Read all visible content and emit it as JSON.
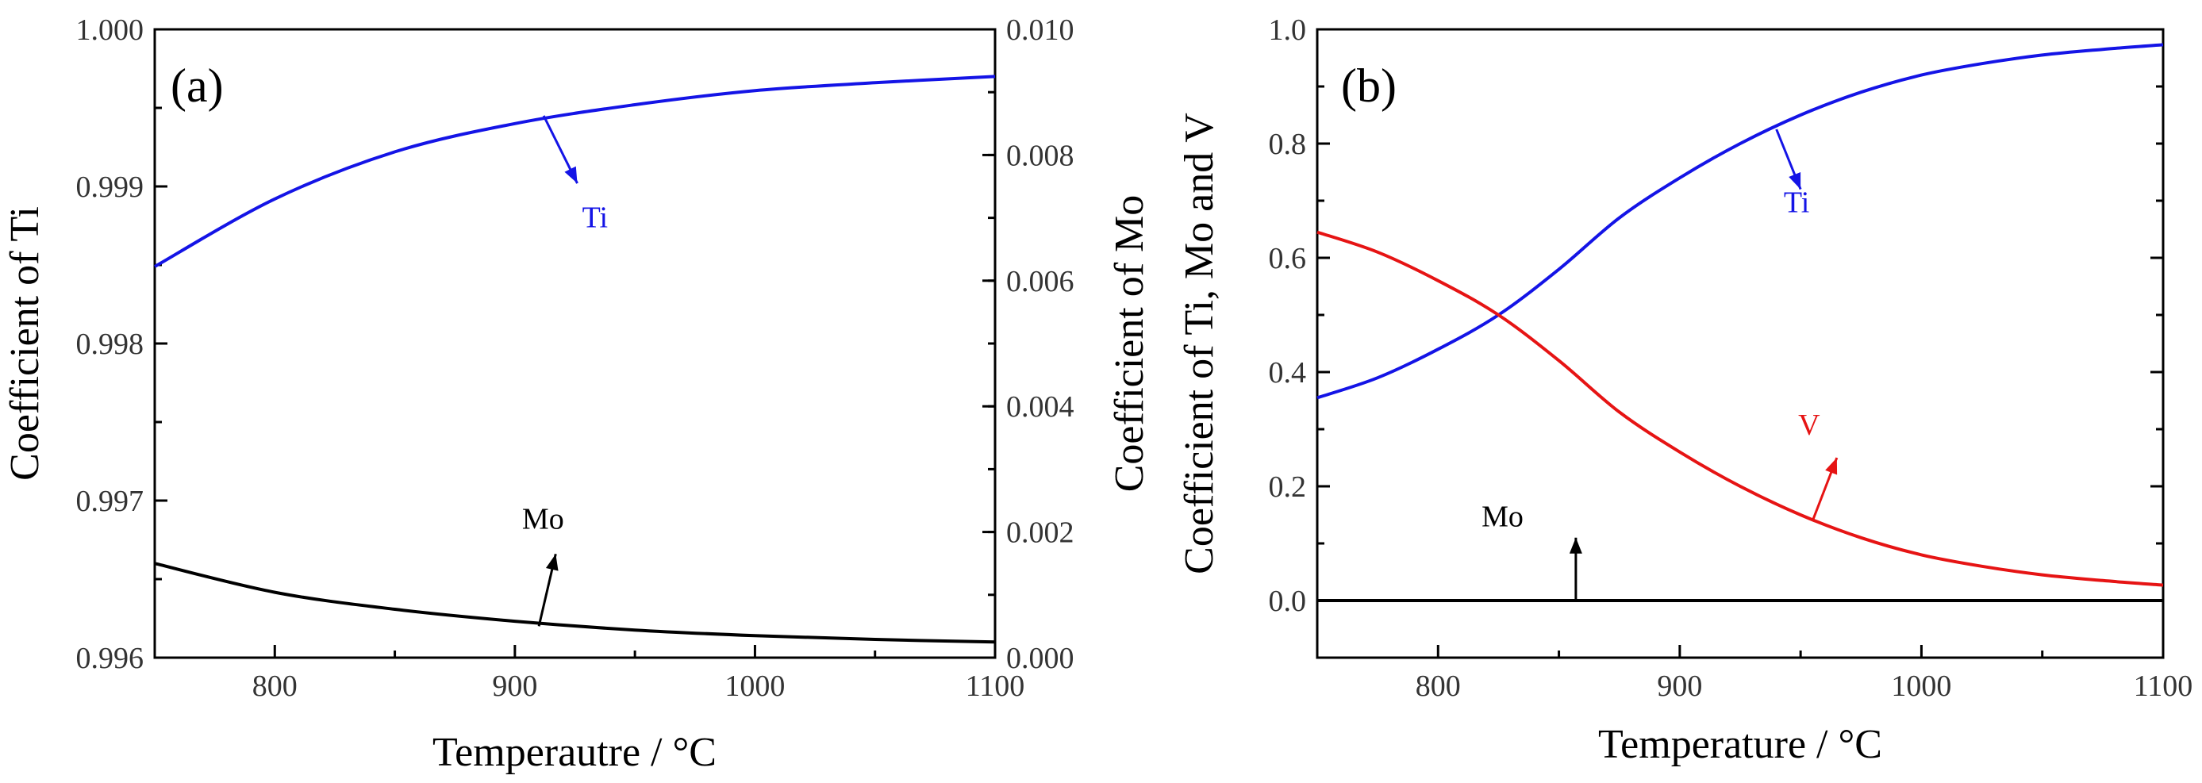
{
  "chart_data": [
    {
      "type": "line",
      "panel_label": "(a)",
      "xlabel": "Temperautre / °C",
      "ylabel_left": "Coefficient of Ti",
      "ylabel_right": "Coefficient of Mo",
      "xlim": [
        750,
        1100
      ],
      "ylim_left": [
        0.996,
        1.0
      ],
      "ylim_right": [
        0.0,
        0.01
      ],
      "x_ticks": [
        "800",
        "900",
        "1000",
        "1100"
      ],
      "y_left_ticks": [
        "0.996",
        "0.997",
        "0.998",
        "0.999",
        "1.000"
      ],
      "y_right_ticks": [
        "0.000",
        "0.002",
        "0.004",
        "0.006",
        "0.008",
        "0.010"
      ],
      "series": [
        {
          "name": "Ti",
          "axis": "left",
          "color": "#1414e6",
          "x": [
            750,
            800,
            850,
            900,
            950,
            1000,
            1050,
            1100
          ],
          "y": [
            0.99849,
            0.99892,
            0.99922,
            0.9994,
            0.99952,
            0.99961,
            0.99966,
            0.9997
          ]
        },
        {
          "name": "Mo",
          "axis": "right",
          "color": "#000000",
          "x": [
            750,
            800,
            850,
            900,
            950,
            1000,
            1050,
            1100
          ],
          "y": [
            0.0015,
            0.00104,
            0.00077,
            0.00058,
            0.00044,
            0.00035,
            0.00029,
            0.00025
          ]
        }
      ],
      "annotations": [
        {
          "text": "Ti",
          "color": "#1414e6",
          "arrow_from": [
            912,
            0.99945
          ],
          "arrow_to": [
            926,
            0.99902
          ],
          "text_at": [
            928,
            0.99874
          ]
        },
        {
          "text": "Mo",
          "color": "#000000",
          "arrow_from": [
            910,
            0.0005
          ],
          "arrow_to": [
            917,
            0.00165
          ],
          "text_at": [
            903,
            0.00205
          ]
        }
      ]
    },
    {
      "type": "line",
      "panel_label": "(b)",
      "xlabel": "Temperature / °C",
      "ylabel": "Coefficient of Ti, Mo and V",
      "xlim": [
        750,
        1100
      ],
      "ylim": [
        -0.1,
        1.0
      ],
      "x_ticks": [
        "800",
        "900",
        "1000",
        "1100"
      ],
      "y_ticks": [
        "0.0",
        "0.2",
        "0.4",
        "0.6",
        "0.8",
        "1.0"
      ],
      "series": [
        {
          "name": "Ti",
          "color": "#1414e6",
          "x": [
            750,
            775,
            800,
            825,
            850,
            875,
            900,
            925,
            950,
            975,
            1000,
            1025,
            1050,
            1075,
            1100
          ],
          "y": [
            0.355,
            0.39,
            0.44,
            0.5,
            0.58,
            0.67,
            0.74,
            0.8,
            0.85,
            0.89,
            0.92,
            0.94,
            0.955,
            0.965,
            0.973
          ]
        },
        {
          "name": "V",
          "color": "#e61414",
          "x": [
            750,
            775,
            800,
            825,
            850,
            875,
            900,
            925,
            950,
            975,
            1000,
            1025,
            1050,
            1075,
            1100
          ],
          "y": [
            0.645,
            0.61,
            0.56,
            0.5,
            0.42,
            0.33,
            0.26,
            0.2,
            0.15,
            0.11,
            0.08,
            0.06,
            0.045,
            0.035,
            0.027
          ]
        },
        {
          "name": "Mo",
          "color": "#000000",
          "x": [
            750,
            1100
          ],
          "y": [
            0.0,
            0.0
          ]
        }
      ],
      "annotations": [
        {
          "text": "Ti",
          "color": "#1414e6",
          "arrow_from": [
            940,
            0.825
          ],
          "arrow_to": [
            950,
            0.72
          ],
          "text_at": [
            943,
            0.68
          ]
        },
        {
          "text": "V",
          "color": "#e61414",
          "arrow_from": [
            955,
            0.14
          ],
          "arrow_to": [
            965,
            0.25
          ],
          "text_at": [
            949,
            0.29
          ]
        },
        {
          "text": "Mo",
          "color": "#000000",
          "arrow_from": [
            857,
            0.0
          ],
          "arrow_to": [
            857,
            0.11
          ],
          "text_at": [
            818,
            0.13
          ]
        }
      ]
    }
  ]
}
